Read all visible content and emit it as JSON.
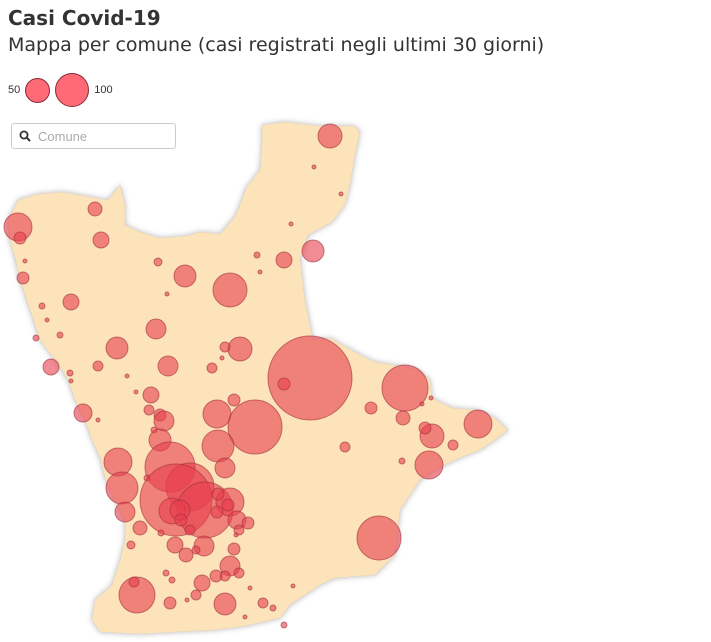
{
  "title": "Casi Covid-19",
  "subtitle": "Mappa per comune (casi registrati negli ultimi 30 giorni)",
  "legend": {
    "small_label": "50",
    "large_label": "100"
  },
  "search": {
    "placeholder": "Comune",
    "value": ""
  },
  "colors": {
    "region_fill": "#fde3ba",
    "bubble_fill": "#e8404f",
    "bubble_stroke": "#9e2f3b",
    "outline": "#dddddd"
  },
  "icons": {
    "search": "search-icon"
  }
}
